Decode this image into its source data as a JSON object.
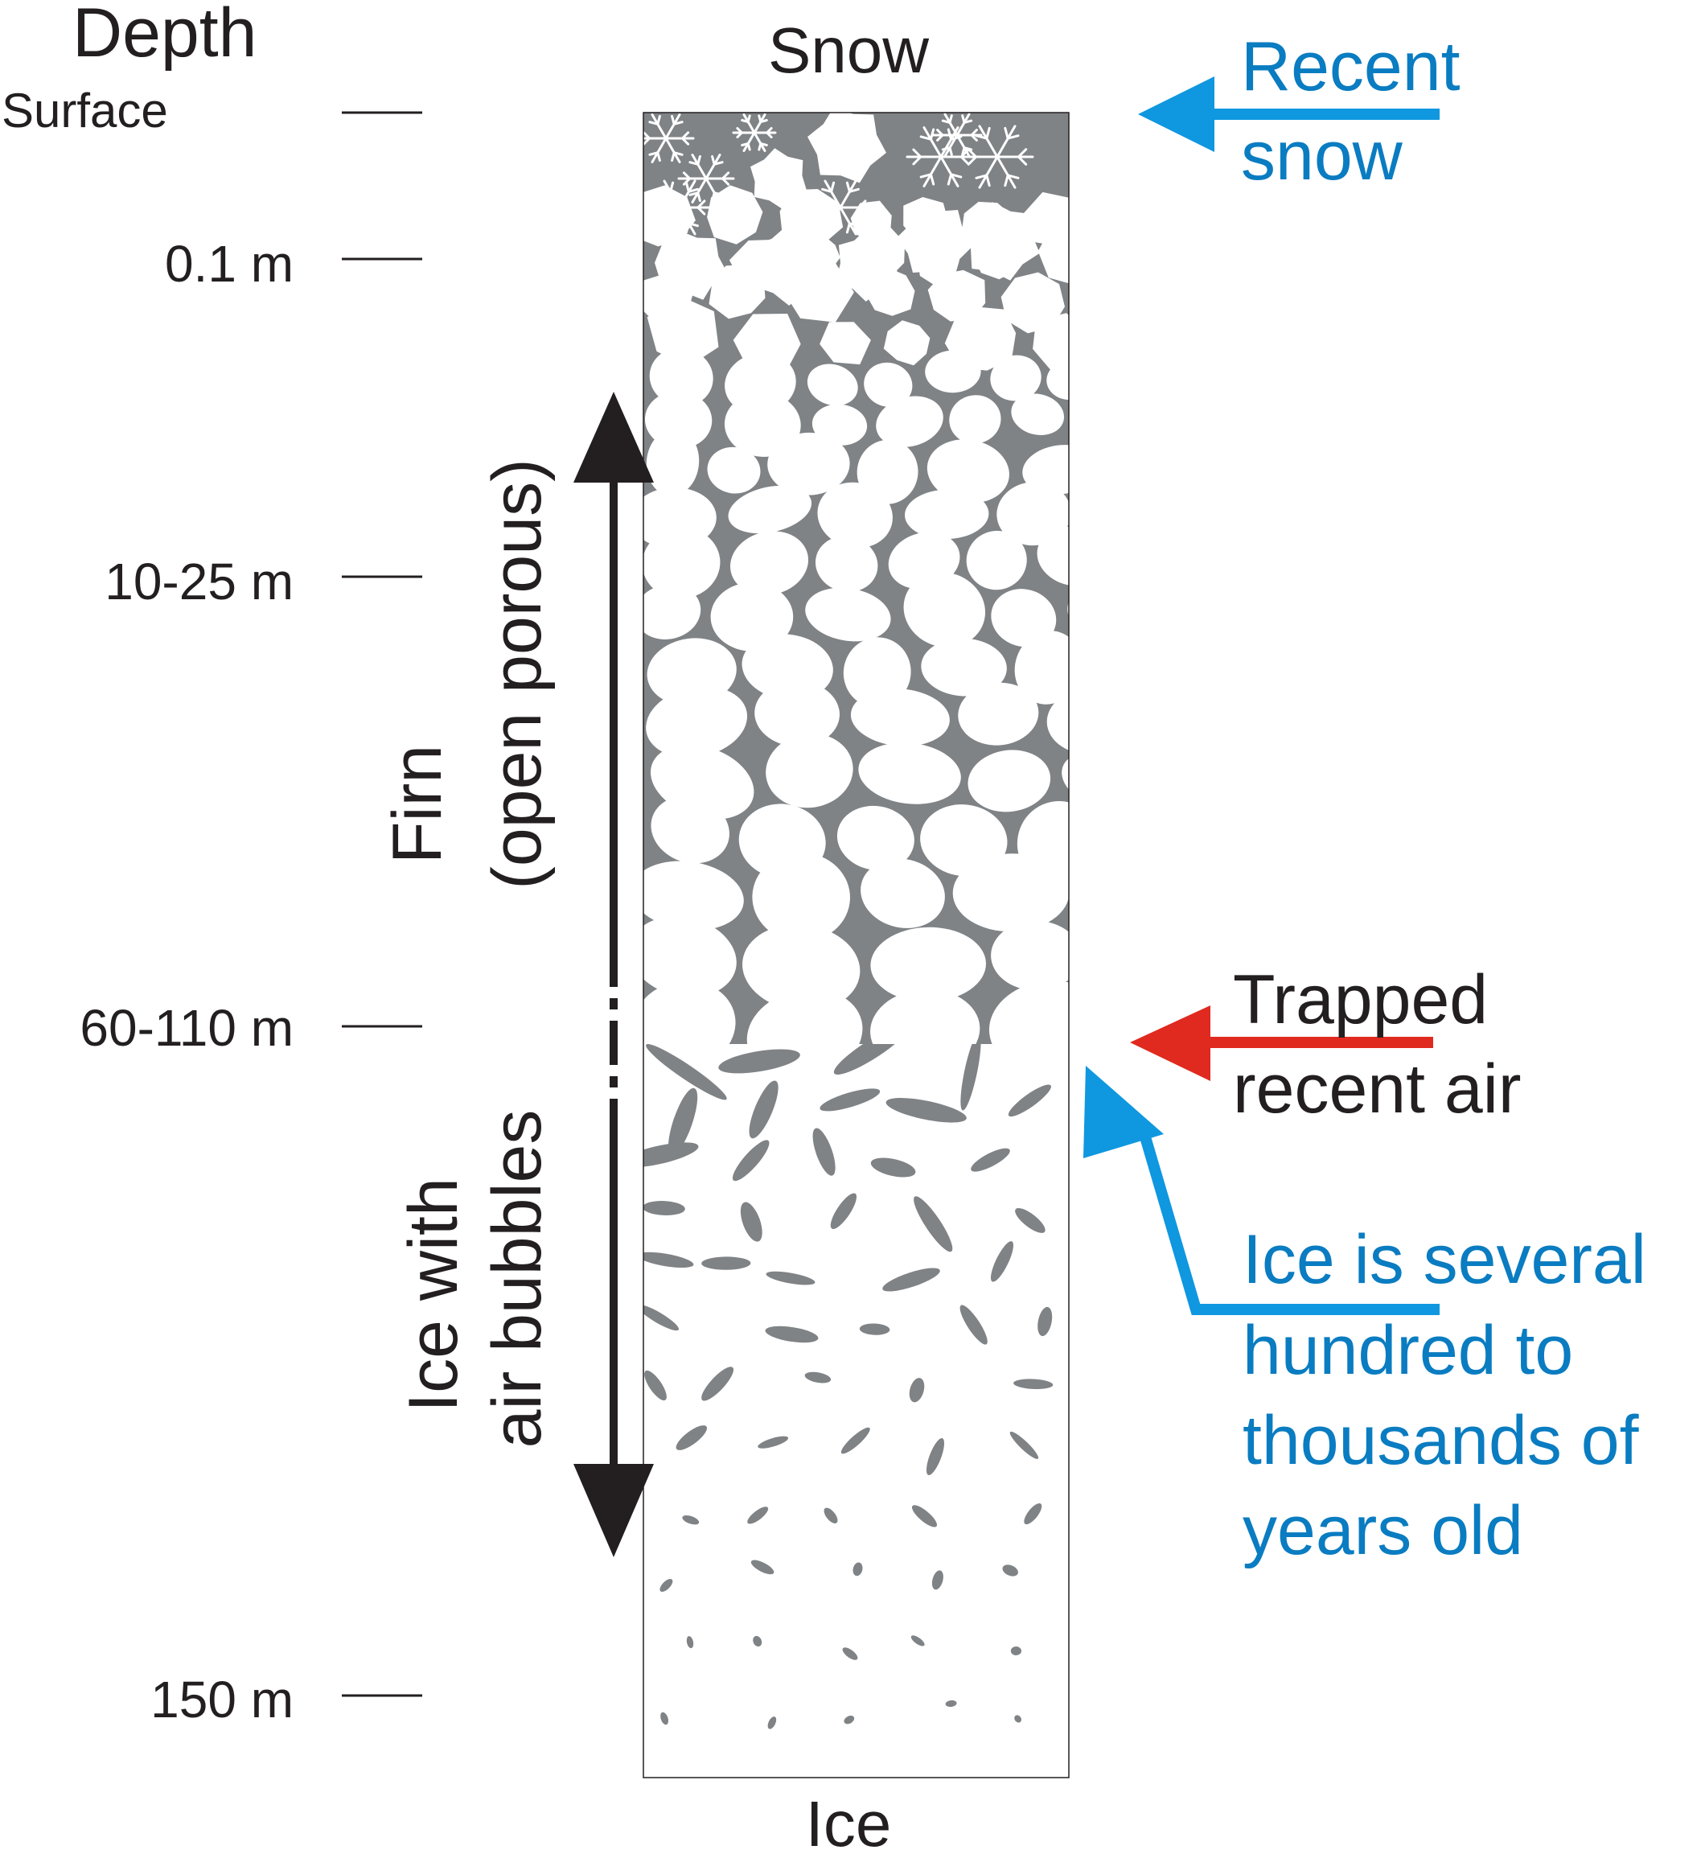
{
  "header": {
    "depth_title": "Depth",
    "surface_label": "Surface",
    "top_label": "Snow",
    "bottom_label": "Ice"
  },
  "depth_ticks": [
    {
      "label": "0.1 m"
    },
    {
      "label": "10-25 m"
    },
    {
      "label": "60-110 m"
    },
    {
      "label": "150 m"
    }
  ],
  "zones": {
    "firn_line1": "Firn",
    "firn_line2": "(open porous)",
    "ice_line1": "Ice with",
    "ice_line2": "air bubbles"
  },
  "annotations": {
    "recent_snow": [
      "Recent",
      "snow"
    ],
    "trapped_air": [
      "Trapped",
      "recent air"
    ],
    "ice_age": [
      "Ice is several",
      "hundred to",
      "thousands of",
      "years old"
    ]
  },
  "colors": {
    "firn_gray": "#7f8386",
    "text_dark": "#231f20",
    "arrow_blue": "#0f97e0",
    "arrow_red": "#e02a1f",
    "text_blue": "#0a7cc1"
  },
  "icons": [
    "snowflake-icon",
    "double-headed-arrow-icon",
    "left-arrow-icon"
  ]
}
